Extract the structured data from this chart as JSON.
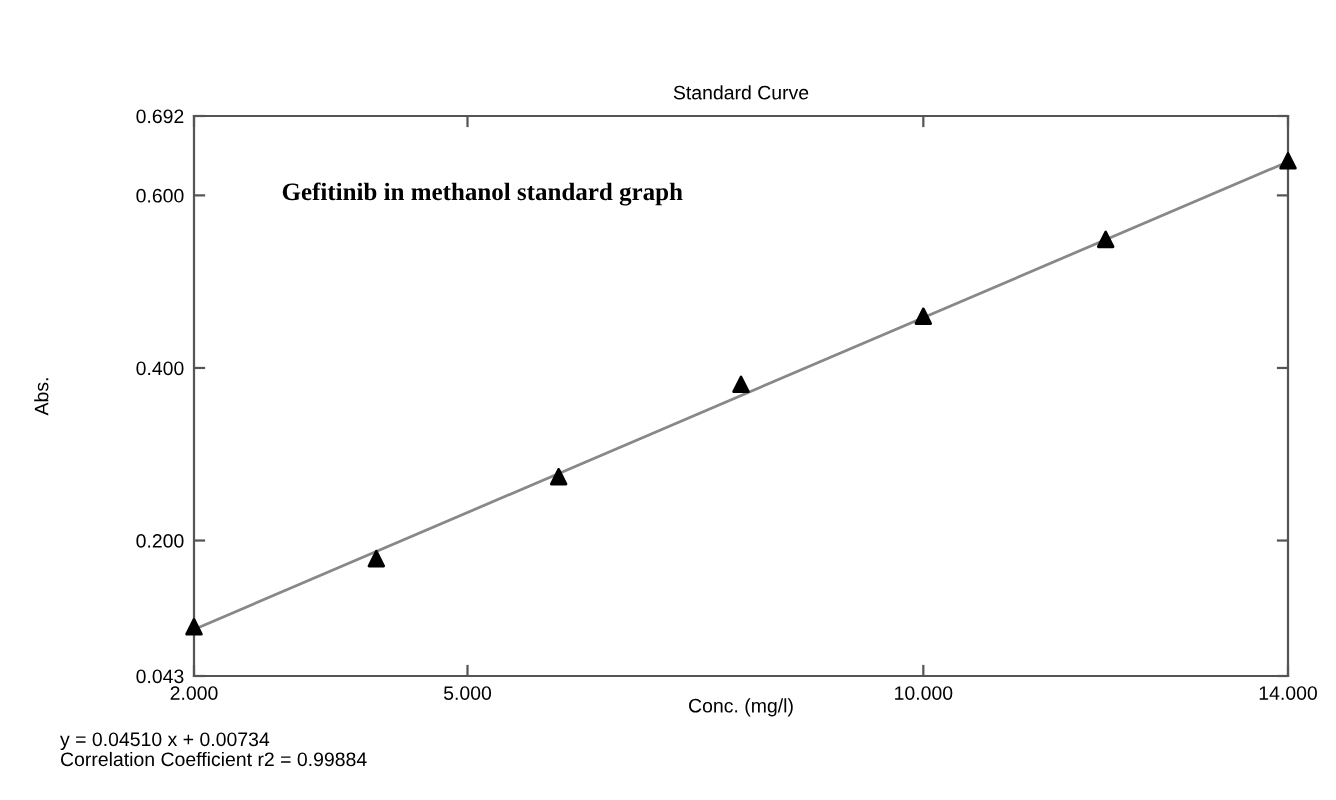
{
  "chart_data": {
    "type": "scatter",
    "title": "Standard Curve",
    "xlabel": "Conc. (mg/l)",
    "ylabel": "Abs.",
    "xlim": [
      2,
      14
    ],
    "ylim": [
      0.043,
      0.692
    ],
    "xticks": [
      {
        "value": 2,
        "label": "2.000"
      },
      {
        "value": 5,
        "label": "5.000"
      },
      {
        "value": 10,
        "label": "10.000"
      },
      {
        "value": 14,
        "label": "14.000"
      }
    ],
    "yticks": [
      {
        "value": 0.043,
        "label": "0.043"
      },
      {
        "value": 0.2,
        "label": "0.200"
      },
      {
        "value": 0.4,
        "label": "0.400"
      },
      {
        "value": 0.6,
        "label": "0.600"
      },
      {
        "value": 0.692,
        "label": "0.692"
      }
    ],
    "grid": false,
    "legend": false,
    "series": [
      {
        "marker": "triangle",
        "color": "#000000",
        "x": [
          2,
          4,
          6,
          8,
          10,
          12,
          14
        ],
        "values": [
          0.1,
          0.179,
          0.274,
          0.381,
          0.46,
          0.549,
          0.64
        ]
      },
      {
        "type": "line",
        "color": "#888888",
        "x": [
          2,
          14
        ],
        "values": [
          0.097,
          0.639
        ]
      }
    ],
    "annotations": [
      "Gefitinib in methanol standard graph",
      "y = 0.04510 x + 0.00734",
      "Correlation Coefficient r2 = 0.99884"
    ]
  }
}
